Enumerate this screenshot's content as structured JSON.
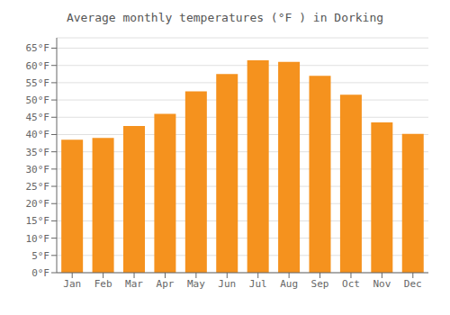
{
  "chart_data": {
    "type": "bar",
    "title": "Average monthly temperatures (°F ) in Dorking",
    "categories": [
      "Jan",
      "Feb",
      "Mar",
      "Apr",
      "May",
      "Jun",
      "Jul",
      "Aug",
      "Sep",
      "Oct",
      "Nov",
      "Dec"
    ],
    "values": [
      38.5,
      39.0,
      42.5,
      46.0,
      52.5,
      57.5,
      61.5,
      61.0,
      57.0,
      51.5,
      43.5,
      40.2
    ],
    "color": "#F5921E",
    "ylim": [
      0,
      68
    ],
    "yticks": [
      {
        "value": 0,
        "label": "0°F"
      },
      {
        "value": 5,
        "label": "5°F"
      },
      {
        "value": 10,
        "label": "10°F"
      },
      {
        "value": 15,
        "label": "15°F"
      },
      {
        "value": 20,
        "label": "20°F"
      },
      {
        "value": 25,
        "label": "25°F"
      },
      {
        "value": 30,
        "label": "30°F"
      },
      {
        "value": 35,
        "label": "35°F"
      },
      {
        "value": 40,
        "label": "40°F"
      },
      {
        "value": 45,
        "label": "45°F"
      },
      {
        "value": 50,
        "label": "50°F"
      },
      {
        "value": 55,
        "label": "55°F"
      },
      {
        "value": 60,
        "label": "60°F"
      },
      {
        "value": 65,
        "label": "65°F"
      }
    ],
    "grid": true
  }
}
